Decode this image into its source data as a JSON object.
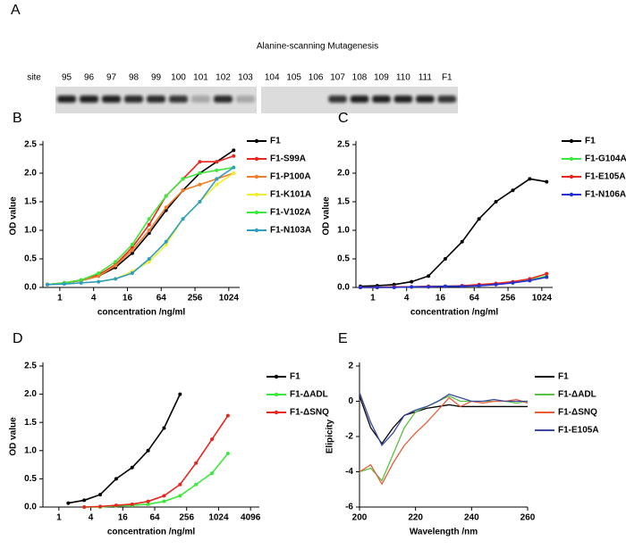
{
  "blot": {
    "panel": "A",
    "title": "Alanine-scanning Mutagenesis",
    "site_label": "site",
    "membranes": [
      {
        "lanes": [
          {
            "label": "95",
            "intensity": 0.9
          },
          {
            "label": "96",
            "intensity": 0.9
          },
          {
            "label": "97",
            "intensity": 0.9
          },
          {
            "label": "98",
            "intensity": 0.85
          },
          {
            "label": "99",
            "intensity": 0.85
          },
          {
            "label": "100",
            "intensity": 0.8
          },
          {
            "label": "101",
            "intensity": 0.25
          },
          {
            "label": "102",
            "intensity": 0.85
          },
          {
            "label": "103",
            "intensity": 0.25
          }
        ]
      },
      {
        "lanes": [
          {
            "label": "104",
            "intensity": 0
          },
          {
            "label": "105",
            "intensity": 0
          },
          {
            "label": "106",
            "intensity": 0
          },
          {
            "label": "107",
            "intensity": 0.8
          },
          {
            "label": "108",
            "intensity": 0.9
          },
          {
            "label": "109",
            "intensity": 0.9
          },
          {
            "label": "110",
            "intensity": 0.9
          },
          {
            "label": "111",
            "intensity": 0.9
          },
          {
            "label": "F1",
            "intensity": 0.8
          }
        ]
      }
    ]
  },
  "chart_data": [
    {
      "type": "line",
      "panel": "B",
      "xlabel": "concentration /ng/ml",
      "ylabel": "OD value",
      "xscale": "log2",
      "markers": true,
      "legend": "right-outside",
      "xlim": [
        0.5,
        1600
      ],
      "xticks": [
        1,
        4,
        16,
        64,
        256,
        1024
      ],
      "ylim": [
        0,
        2.5
      ],
      "yticks": [
        {
          "value": 0,
          "label": "0.0"
        },
        0.5,
        {
          "value": 1,
          "label": "1.0"
        },
        1.5,
        {
          "value": 2,
          "label": "2.0"
        },
        2.5
      ],
      "x": [
        0.6,
        1.2,
        2.4,
        4.9,
        9.8,
        19.5,
        39,
        78,
        156,
        312,
        625,
        1250
      ],
      "series": [
        {
          "name": "F1",
          "color": "#000000",
          "values": [
            0.05,
            0.08,
            0.12,
            0.2,
            0.35,
            0.6,
            0.95,
            1.35,
            1.7,
            2.0,
            2.2,
            2.4
          ]
        },
        {
          "name": "F1-S99A",
          "color": "#e8251e",
          "values": [
            0.05,
            0.08,
            0.13,
            0.22,
            0.4,
            0.7,
            1.1,
            1.6,
            1.9,
            2.2,
            2.2,
            2.3
          ]
        },
        {
          "name": "F1-P100A",
          "color": "#f07f2b",
          "values": [
            0.05,
            0.08,
            0.12,
            0.2,
            0.38,
            0.65,
            1.0,
            1.4,
            1.7,
            1.8,
            1.9,
            2.0
          ]
        },
        {
          "name": "F1-K101A",
          "color": "#f2ee2e",
          "values": [
            0.05,
            0.06,
            0.08,
            0.1,
            0.15,
            0.28,
            0.45,
            0.75,
            1.2,
            1.5,
            1.8,
            2.0
          ]
        },
        {
          "name": "F1-V102A",
          "color": "#3ce83a",
          "values": [
            0.05,
            0.08,
            0.13,
            0.25,
            0.45,
            0.75,
            1.2,
            1.6,
            1.9,
            2.0,
            2.05,
            2.1
          ]
        },
        {
          "name": "F1-N103A",
          "color": "#2e9ec2",
          "values": [
            0.05,
            0.06,
            0.08,
            0.1,
            0.15,
            0.25,
            0.5,
            0.8,
            1.2,
            1.5,
            1.9,
            2.1
          ]
        }
      ]
    },
    {
      "type": "line",
      "panel": "C",
      "xlabel": "concentration /ng/ml",
      "ylabel": "OD value",
      "xscale": "log2",
      "markers": true,
      "legend": "right-outside",
      "xlim": [
        0.5,
        1600
      ],
      "xticks": [
        1,
        4,
        16,
        64,
        256,
        1024
      ],
      "ylim": [
        0,
        2.5
      ],
      "yticks": [
        {
          "value": 0,
          "label": "0.0"
        },
        0.5,
        {
          "value": 1,
          "label": "1.0"
        },
        1.5,
        {
          "value": 2,
          "label": "2.0"
        },
        2.5
      ],
      "x": [
        0.6,
        1.2,
        2.4,
        4.9,
        9.8,
        19.5,
        39,
        78,
        156,
        312,
        625,
        1250
      ],
      "series": [
        {
          "name": "F1",
          "color": "#000000",
          "values": [
            0.02,
            0.03,
            0.05,
            0.1,
            0.2,
            0.5,
            0.8,
            1.2,
            1.5,
            1.7,
            1.9,
            1.85
          ]
        },
        {
          "name": "F1-G104A",
          "color": "#3ce83a",
          "values": [
            0.0,
            0.0,
            0.01,
            0.01,
            0.02,
            0.02,
            0.03,
            0.04,
            0.06,
            0.09,
            0.13,
            0.2
          ]
        },
        {
          "name": "F1-E105A",
          "color": "#e8251e",
          "values": [
            0.0,
            0.0,
            0.01,
            0.01,
            0.02,
            0.02,
            0.03,
            0.05,
            0.07,
            0.1,
            0.15,
            0.24
          ]
        },
        {
          "name": "F1-N106A",
          "color": "#2431d1",
          "values": [
            0.0,
            0.0,
            0.0,
            0.01,
            0.01,
            0.02,
            0.02,
            0.03,
            0.05,
            0.08,
            0.12,
            0.18
          ]
        }
      ]
    },
    {
      "type": "line",
      "panel": "D",
      "xlabel": "concentration /ng/ml",
      "ylabel": "OD value",
      "xscale": "log2",
      "markers": true,
      "legend": "right-outside",
      "xlim": [
        0.5,
        6000
      ],
      "xticks": [
        1,
        4,
        16,
        64,
        256,
        1024,
        4096
      ],
      "ylim": [
        0,
        2.5
      ],
      "yticks": [
        {
          "value": 0,
          "label": "0.0"
        },
        0.5,
        {
          "value": 1,
          "label": "1.0"
        },
        1.5,
        {
          "value": 2,
          "label": "2.0"
        },
        2.5
      ],
      "series": [
        {
          "name": "F1",
          "color": "#000000",
          "x": [
            1.5,
            3,
            6,
            12,
            24,
            48,
            96,
            192
          ],
          "values": [
            0.07,
            0.12,
            0.22,
            0.5,
            0.7,
            1.0,
            1.4,
            2.0
          ]
        },
        {
          "name": "F1-ΔADL",
          "color": "#3ce83a",
          "x": [
            3,
            6,
            12,
            24,
            48,
            96,
            192,
            384,
            768,
            1536
          ],
          "values": [
            0.0,
            0.0,
            0.02,
            0.03,
            0.05,
            0.1,
            0.2,
            0.4,
            0.6,
            0.95
          ]
        },
        {
          "name": "F1-ΔSNQ",
          "color": "#e8251e",
          "x": [
            3,
            6,
            12,
            24,
            48,
            96,
            192,
            384,
            768,
            1536
          ],
          "values": [
            0.0,
            0.01,
            0.03,
            0.05,
            0.1,
            0.2,
            0.4,
            0.78,
            1.2,
            1.62
          ]
        }
      ]
    },
    {
      "type": "line",
      "panel": "E",
      "xlabel": "Wavelength /nm",
      "ylabel": "Elipicity",
      "xscale": "linear",
      "markers": false,
      "legend": "right-outside",
      "xlim": [
        200,
        260
      ],
      "xticks": [
        200,
        220,
        240,
        260
      ],
      "ylim": [
        -6,
        2
      ],
      "yticks": [
        -6,
        -4,
        -2,
        0,
        2
      ],
      "x": [
        200,
        204,
        208,
        212,
        216,
        220,
        224,
        228,
        232,
        236,
        240,
        244,
        248,
        252,
        256,
        260
      ],
      "series": [
        {
          "name": "F1",
          "color": "#000000",
          "values": [
            0.3,
            -1.5,
            -2.4,
            -1.5,
            -0.8,
            -0.6,
            -0.4,
            -0.3,
            -0.2,
            -0.3,
            -0.3,
            -0.3,
            -0.3,
            -0.3,
            -0.3,
            -0.3
          ]
        },
        {
          "name": "F1-ΔADL",
          "color": "#5cc143",
          "values": [
            -4.0,
            -3.8,
            -4.5,
            -3.0,
            -1.5,
            -0.6,
            -0.3,
            0.0,
            0.3,
            0.0,
            0.0,
            0.0,
            0.0,
            0.0,
            -0.1,
            0.0
          ]
        },
        {
          "name": "F1-ΔSNQ",
          "color": "#e85a38",
          "values": [
            -4.0,
            -3.6,
            -4.7,
            -3.5,
            -2.5,
            -1.8,
            -1.2,
            -0.5,
            0.2,
            -0.3,
            0.0,
            -0.1,
            0.0,
            0.0,
            0.1,
            -0.1
          ]
        },
        {
          "name": "F1-E105A",
          "color": "#3a4aa0",
          "values": [
            0.5,
            -1.2,
            -2.5,
            -1.8,
            -0.8,
            -0.5,
            -0.3,
            0.0,
            0.4,
            0.2,
            0.0,
            0.0,
            0.1,
            0.0,
            0.0,
            0.0
          ]
        }
      ]
    }
  ]
}
